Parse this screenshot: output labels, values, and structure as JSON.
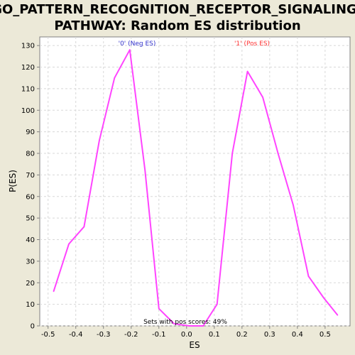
{
  "chart_data": {
    "type": "line",
    "title_lines": [
      "GO_PATTERN_RECOGNITION_RECEPTOR_SIGNALING_",
      "PATHWAY: Random ES distribution"
    ],
    "xlabel": "ES",
    "ylabel": "P(ES)",
    "xlim": [
      -0.53,
      0.59
    ],
    "ylim": [
      0,
      134
    ],
    "x_ticks": [
      -0.5,
      -0.4,
      -0.3,
      -0.2,
      -0.1,
      0.0,
      0.1,
      0.2,
      0.3,
      0.4,
      0.5
    ],
    "x_tick_labels": [
      "-0.5",
      "-0.4",
      "-0.3",
      "-0.2",
      "-0.1",
      "0.0",
      "0.1",
      "0.2",
      "0.3",
      "0.4",
      "0.5"
    ],
    "y_ticks": [
      0,
      10,
      20,
      30,
      40,
      50,
      60,
      70,
      80,
      90,
      100,
      110,
      120,
      130
    ],
    "y_tick_labels": [
      "0",
      "10",
      "20",
      "30",
      "40",
      "50",
      "60",
      "70",
      "80",
      "90",
      "100",
      "110",
      "120",
      "130"
    ],
    "grid": true,
    "line_color": "#FF44FF",
    "neg_label": "'0' (Neg ES)",
    "neg_label_color": "#3333CC",
    "pos_label": "'1' (Pos ES)",
    "pos_label_color": "#FF3333",
    "footer_note": "Sets with pos scores: 49%",
    "series": [
      {
        "x": [
          -0.48,
          -0.425,
          -0.37,
          -0.315,
          -0.26,
          -0.205,
          -0.15,
          -0.1,
          -0.045,
          0.01,
          0.06,
          0.11,
          0.165,
          0.22,
          0.275,
          0.33,
          0.385,
          0.44,
          0.495,
          0.545
        ],
        "values": [
          16,
          38,
          46,
          86,
          115,
          128,
          72,
          8,
          1,
          0,
          0,
          10,
          80,
          118,
          106,
          80,
          56,
          23,
          13,
          5
        ]
      }
    ]
  }
}
